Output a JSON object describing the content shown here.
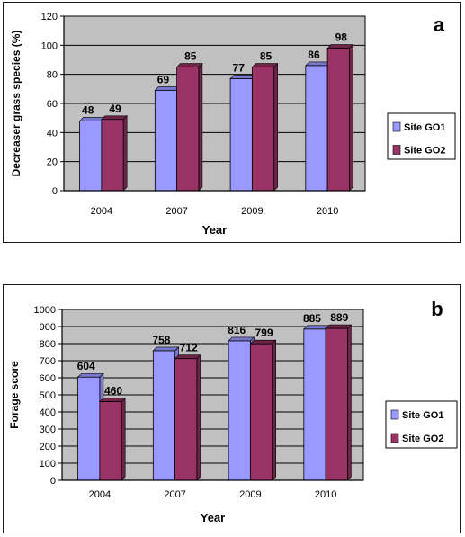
{
  "colors": {
    "plot_background": "#c0c0c0",
    "series_colors": [
      "#9999ff",
      "#993366"
    ],
    "gridline": "#000000"
  },
  "chart_data": [
    {
      "panel_label": "a",
      "type": "bar",
      "categories": [
        "2004",
        "2007",
        "2009",
        "2010"
      ],
      "series": [
        {
          "name": "Site GO1",
          "values": [
            48,
            69,
            77,
            86
          ]
        },
        {
          "name": "Site GO2",
          "values": [
            49,
            85,
            85,
            98
          ]
        }
      ],
      "data_labels": true,
      "xlabel": "Year",
      "ylabel": "Decreaser grass species (%)",
      "ylim": [
        0,
        120
      ],
      "yticks": [
        0,
        20,
        40,
        60,
        80,
        100,
        120
      ],
      "grid": true,
      "legend_position": "right"
    },
    {
      "panel_label": "b",
      "type": "bar",
      "categories": [
        "2004",
        "2007",
        "2009",
        "2010"
      ],
      "series": [
        {
          "name": "Site GO1",
          "values": [
            604,
            758,
            816,
            885
          ]
        },
        {
          "name": "Site GO2",
          "values": [
            460,
            712,
            799,
            889
          ]
        }
      ],
      "data_labels": true,
      "xlabel": "Year",
      "ylabel": "Forage score",
      "ylim": [
        0,
        1000
      ],
      "yticks": [
        0,
        100,
        200,
        300,
        400,
        500,
        600,
        700,
        800,
        900,
        1000
      ],
      "grid": true,
      "legend_position": "right"
    }
  ]
}
